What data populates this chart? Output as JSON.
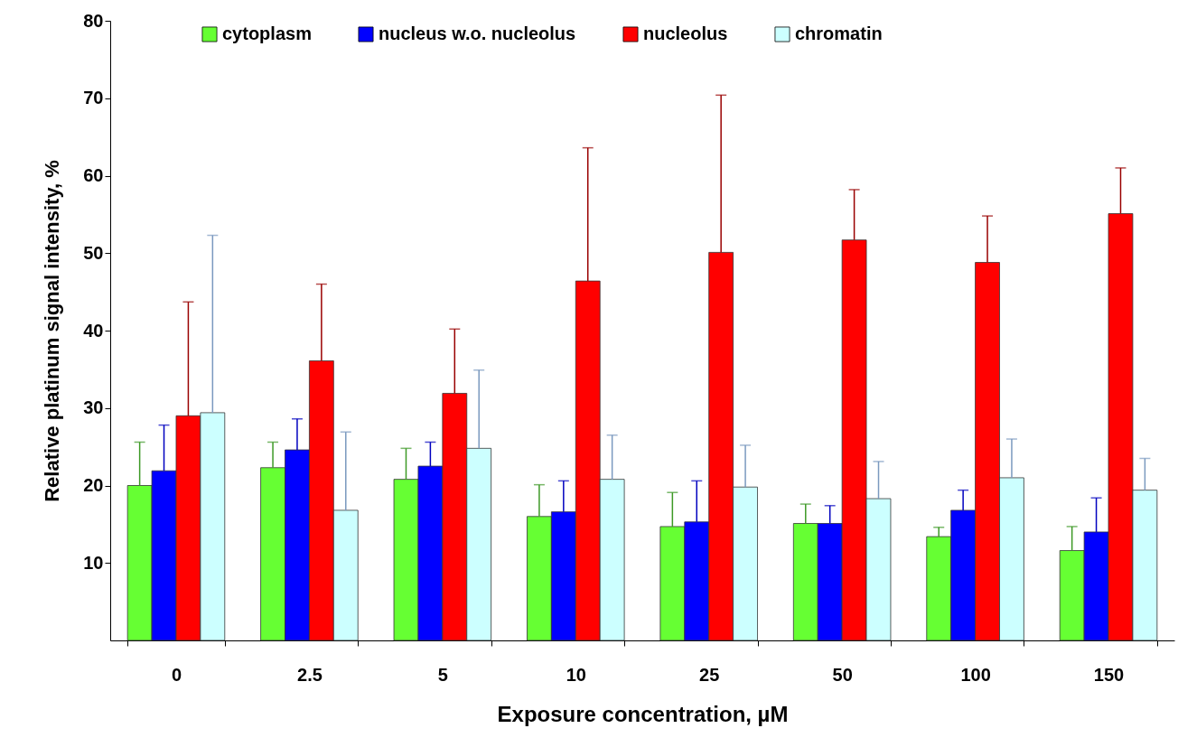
{
  "chart_data": {
    "type": "bar",
    "xlabel": "Exposure concentration, µM",
    "ylabel": "Relative platinum signal intensity, %",
    "categories": [
      "0",
      "2.5",
      "5",
      "10",
      "25",
      "50",
      "100",
      "150"
    ],
    "series": [
      {
        "name": "cytoplasm",
        "color": "#66ff33",
        "values": [
          20.0,
          22.3,
          20.8,
          16.0,
          14.7,
          15.1,
          13.4,
          11.6
        ],
        "errors": [
          [
            20.0,
            25.6
          ],
          [
            22.3,
            25.6
          ],
          [
            20.8,
            24.8
          ],
          [
            16.0,
            20.1
          ],
          [
            14.7,
            19.1
          ],
          [
            15.1,
            17.6
          ],
          [
            13.4,
            14.6
          ],
          [
            11.6,
            14.7
          ]
        ]
      },
      {
        "name": "nucleus w.o. nucleolus",
        "color": "#0000ff",
        "values": [
          21.9,
          24.6,
          22.5,
          16.6,
          15.3,
          15.1,
          16.8,
          14.0
        ],
        "errors": [
          [
            21.9,
            27.8
          ],
          [
            24.6,
            28.6
          ],
          [
            22.5,
            25.6
          ],
          [
            16.6,
            20.6
          ],
          [
            15.3,
            20.6
          ],
          [
            15.1,
            17.4
          ],
          [
            16.8,
            19.4
          ],
          [
            14.0,
            18.4
          ]
        ]
      },
      {
        "name": "nucleolus",
        "color": "#ff0000",
        "values": [
          29.0,
          36.1,
          31.9,
          46.4,
          50.1,
          51.7,
          48.8,
          55.1
        ],
        "errors": [
          [
            29.0,
            43.7
          ],
          [
            36.1,
            46.0
          ],
          [
            31.9,
            40.2
          ],
          [
            46.4,
            63.6
          ],
          [
            50.1,
            70.4
          ],
          [
            51.7,
            58.2
          ],
          [
            48.8,
            54.8
          ],
          [
            55.1,
            61.0
          ]
        ]
      },
      {
        "name": "chromatin",
        "color": "#ccffff",
        "values": [
          29.4,
          16.8,
          24.8,
          20.8,
          19.8,
          18.3,
          21.0,
          19.4
        ],
        "errors": [
          [
            29.4,
            52.3
          ],
          [
            16.8,
            26.9
          ],
          [
            24.8,
            34.9
          ],
          [
            20.8,
            26.5
          ],
          [
            19.8,
            25.2
          ],
          [
            18.3,
            23.1
          ],
          [
            21.0,
            26.0
          ],
          [
            19.4,
            23.5
          ]
        ]
      }
    ],
    "ylim": [
      0,
      80
    ],
    "yticks": [
      10,
      20,
      30,
      40,
      50,
      60,
      70,
      80
    ],
    "legend": "top"
  }
}
